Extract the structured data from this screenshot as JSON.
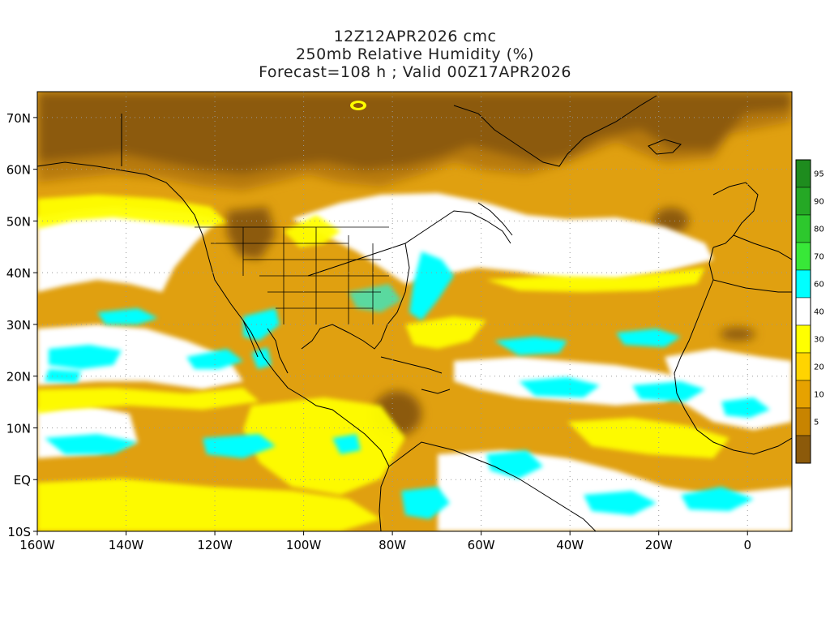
{
  "title": {
    "line1": "12Z12APR2026 cmc",
    "line2": "250mb Relative Humidity (%)",
    "line3": "Forecast=108 h ; Valid 00Z17APR2026"
  },
  "map": {
    "lon_range": [
      -160,
      10
    ],
    "lat_range": [
      -10,
      75
    ],
    "lat_ticks": [
      {
        "value": 70,
        "label": "70N"
      },
      {
        "value": 60,
        "label": "60N"
      },
      {
        "value": 50,
        "label": "50N"
      },
      {
        "value": 40,
        "label": "40N"
      },
      {
        "value": 30,
        "label": "30N"
      },
      {
        "value": 20,
        "label": "20N"
      },
      {
        "value": 10,
        "label": "10N"
      },
      {
        "value": 0,
        "label": "EQ"
      },
      {
        "value": -10,
        "label": "10S"
      }
    ],
    "lon_ticks": [
      {
        "value": -160,
        "label": "160W"
      },
      {
        "value": -140,
        "label": "140W"
      },
      {
        "value": -120,
        "label": "120W"
      },
      {
        "value": -100,
        "label": "100W"
      },
      {
        "value": -80,
        "label": "80W"
      },
      {
        "value": -60,
        "label": "60W"
      },
      {
        "value": -40,
        "label": "40W"
      },
      {
        "value": -20,
        "label": "20W"
      },
      {
        "value": 0,
        "label": "0"
      }
    ],
    "grid": "dotted"
  },
  "colorbar": {
    "levels": [
      {
        "label": "95",
        "color": "#1e8c1e"
      },
      {
        "label": "90",
        "color": "#25a825"
      },
      {
        "label": "80",
        "color": "#2dc82d"
      },
      {
        "label": "70",
        "color": "#38e838"
      },
      {
        "label": "60",
        "color": "#00ffff"
      },
      {
        "label": "40",
        "color": "#ffffff"
      },
      {
        "label": "30",
        "color": "#ffff00"
      },
      {
        "label": "20",
        "color": "#ffd400"
      },
      {
        "label": "10",
        "color": "#e6a200"
      },
      {
        "label": "5",
        "color": "#c88400"
      },
      {
        "label": "",
        "color": "#8c5a0a"
      }
    ]
  },
  "colors": {
    "dark_brown": "#8c5a0a",
    "brown": "#b87a0a",
    "orange": "#e0a010",
    "gold": "#ffd400",
    "yellow": "#ffff00",
    "white": "#ffffff",
    "cyan": "#00ffff",
    "coastline": "#000000"
  }
}
